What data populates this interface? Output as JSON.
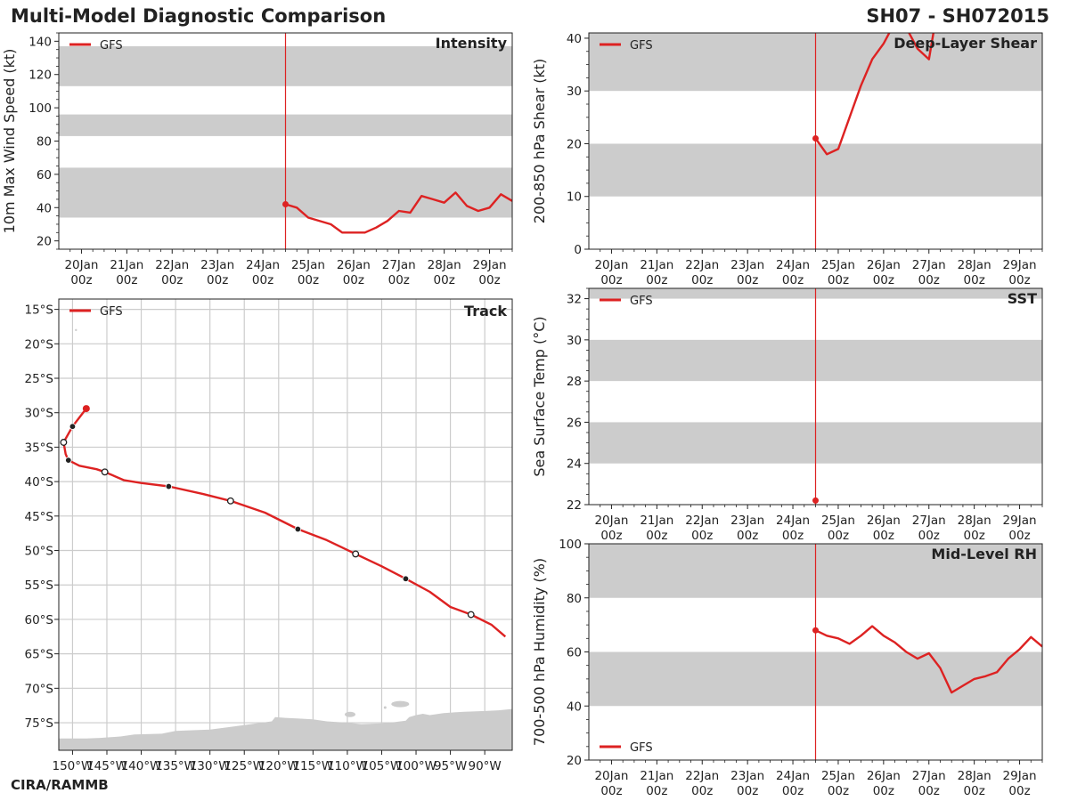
{
  "header": {
    "title": "Multi-Model Diagnostic Comparison",
    "storm_id": "SH07 - SH072015"
  },
  "footer": {
    "credit": "CIRA/RAMMB"
  },
  "colors": {
    "model": "#dd2222",
    "band": "#cccccc",
    "land": "#cccccc",
    "grid": "#cccccc",
    "axis": "#222222"
  },
  "time_ticks": {
    "days": [
      "20Jan",
      "21Jan",
      "22Jan",
      "23Jan",
      "24Jan",
      "25Jan",
      "26Jan",
      "27Jan",
      "28Jan",
      "29Jan"
    ],
    "hour_label": "00z",
    "init_time_days": 4.5
  },
  "chart_data": [
    {
      "id": "intensity",
      "type": "line",
      "title": "Intensity",
      "ylabel": "10m Max Wind Speed (kt)",
      "xlabel": "",
      "ylim": [
        15,
        145
      ],
      "yticks": [
        20,
        40,
        60,
        80,
        100,
        120,
        140
      ],
      "xlim_days": [
        -0.5,
        9.5
      ],
      "bands": [
        [
          34,
          64
        ],
        [
          83,
          96
        ],
        [
          113,
          137
        ]
      ],
      "legend": "top-left",
      "series": [
        {
          "name": "GFS",
          "x_days": [
            4.5,
            4.75,
            5.0,
            5.5,
            5.75,
            6.0,
            6.25,
            6.5,
            6.75,
            7.0,
            7.25,
            7.5,
            7.75,
            8.0,
            8.25,
            8.5,
            8.75,
            9.0,
            9.25,
            9.5
          ],
          "values": [
            42,
            40,
            34,
            30,
            25,
            25,
            25,
            28,
            32,
            38,
            37,
            47,
            45,
            43,
            49,
            41,
            38,
            40,
            48,
            44
          ]
        }
      ]
    },
    {
      "id": "shear",
      "type": "line",
      "title": "Deep-Layer Shear",
      "ylabel": "200-850 hPa Shear (kt)",
      "xlabel": "",
      "ylim": [
        0,
        41
      ],
      "yticks": [
        0,
        10,
        20,
        30,
        40
      ],
      "xlim_days": [
        -0.5,
        9.5
      ],
      "bands": [
        [
          10,
          20
        ],
        [
          30,
          41
        ]
      ],
      "legend": "top-left",
      "series": [
        {
          "name": "GFS",
          "x_days": [
            4.5,
            4.75,
            5.0,
            5.25,
            5.5,
            5.75,
            6.0,
            6.25,
            6.5,
            6.75,
            7.0,
            7.1
          ],
          "values": [
            21,
            18,
            19,
            25,
            31,
            36,
            39,
            43,
            42,
            38,
            36,
            41
          ]
        }
      ]
    },
    {
      "id": "track",
      "type": "line",
      "title": "Track",
      "ylabel": "",
      "xlabel": "",
      "lon_range": [
        -152,
        -86
      ],
      "lat_range": [
        -79,
        -13.5
      ],
      "lon_ticks": [
        -150,
        -145,
        -140,
        -135,
        -130,
        -125,
        -120,
        -115,
        -110,
        -105,
        -100,
        -95,
        -90
      ],
      "lon_tick_labels": [
        "150°W",
        "145°W",
        "140°W",
        "135°W",
        "130°W",
        "125°W",
        "120°W",
        "115°W",
        "110°W",
        "105°W",
        "100°W",
        "95°W",
        "90°W"
      ],
      "lat_ticks": [
        -15,
        -20,
        -25,
        -30,
        -35,
        -40,
        -45,
        -50,
        -55,
        -60,
        -65,
        -70,
        -75
      ],
      "lat_tick_labels": [
        "15°S",
        "20°S",
        "25°S",
        "30°S",
        "35°S",
        "40°S",
        "45°S",
        "50°S",
        "55°S",
        "60°S",
        "65°S",
        "70°S",
        "75°S"
      ],
      "legend": "top-left",
      "series": [
        {
          "name": "GFS",
          "lon": [
            -148.0,
            -149.0,
            -150.0,
            -151.3,
            -151.0,
            -150.6,
            -149.0,
            -146.5,
            -145.3,
            -142.5,
            -140.0,
            -136.0,
            -131.0,
            -127.0,
            -122.0,
            -117.2,
            -113.0,
            -108.8,
            -105.0,
            -101.5,
            -98.0,
            -95.0,
            -92.0,
            -89.0,
            -87.0
          ],
          "lat": [
            -29.4,
            -30.7,
            -32.0,
            -34.3,
            -36.0,
            -36.9,
            -37.7,
            -38.2,
            -38.6,
            -39.8,
            -40.2,
            -40.7,
            -41.8,
            -42.8,
            -44.5,
            -46.9,
            -48.5,
            -50.5,
            -52.3,
            -54.1,
            -56.0,
            -58.2,
            -59.3,
            -60.8,
            -62.5
          ],
          "markers": [
            {
              "lon": -148.0,
              "lat": -29.4,
              "kind": "initial"
            },
            {
              "lon": -150.0,
              "lat": -32.0,
              "kind": "filled"
            },
            {
              "lon": -151.3,
              "lat": -34.3,
              "kind": "open"
            },
            {
              "lon": -150.6,
              "lat": -36.9,
              "kind": "filled"
            },
            {
              "lon": -145.3,
              "lat": -38.6,
              "kind": "open"
            },
            {
              "lon": -136.0,
              "lat": -40.7,
              "kind": "filled"
            },
            {
              "lon": -127.0,
              "lat": -42.8,
              "kind": "open"
            },
            {
              "lon": -117.2,
              "lat": -46.9,
              "kind": "filled"
            },
            {
              "lon": -108.8,
              "lat": -50.5,
              "kind": "open"
            },
            {
              "lon": -101.5,
              "lat": -54.1,
              "kind": "filled"
            },
            {
              "lon": -92.0,
              "lat": -59.3,
              "kind": "open"
            }
          ]
        }
      ]
    },
    {
      "id": "sst",
      "type": "line",
      "title": "SST",
      "ylabel": "Sea Surface Temp (°C)",
      "xlabel": "",
      "ylim": [
        22,
        32.5
      ],
      "yticks": [
        22,
        24,
        26,
        28,
        30,
        32
      ],
      "xlim_days": [
        -0.5,
        9.5
      ],
      "bands": [
        [
          24,
          26
        ],
        [
          28,
          30
        ],
        [
          32,
          32.5
        ]
      ],
      "legend": "top-left",
      "series": [
        {
          "name": "GFS",
          "x_days": [
            4.5
          ],
          "values": [
            22.2
          ]
        }
      ]
    },
    {
      "id": "rh",
      "type": "line",
      "title": "Mid-Level RH",
      "ylabel": "700-500 hPa Humidity (%)",
      "xlabel": "",
      "ylim": [
        20,
        100
      ],
      "yticks": [
        20,
        40,
        60,
        80,
        100
      ],
      "xlim_days": [
        -0.5,
        9.5
      ],
      "bands": [
        [
          40,
          60
        ],
        [
          80,
          100
        ]
      ],
      "legend": "bottom-left",
      "series": [
        {
          "name": "GFS",
          "x_days": [
            4.5,
            4.75,
            5.0,
            5.25,
            5.5,
            5.75,
            6.0,
            6.25,
            6.5,
            6.75,
            7.0,
            7.25,
            7.5,
            7.75,
            8.0,
            8.25,
            8.5,
            8.75,
            9.0,
            9.25,
            9.5
          ],
          "values": [
            68,
            66,
            65,
            63,
            66,
            69.5,
            66,
            63.5,
            60,
            57.5,
            59.5,
            54,
            45,
            47.5,
            50,
            51,
            52.5,
            57.5,
            61,
            65.5,
            62
          ]
        }
      ]
    }
  ]
}
